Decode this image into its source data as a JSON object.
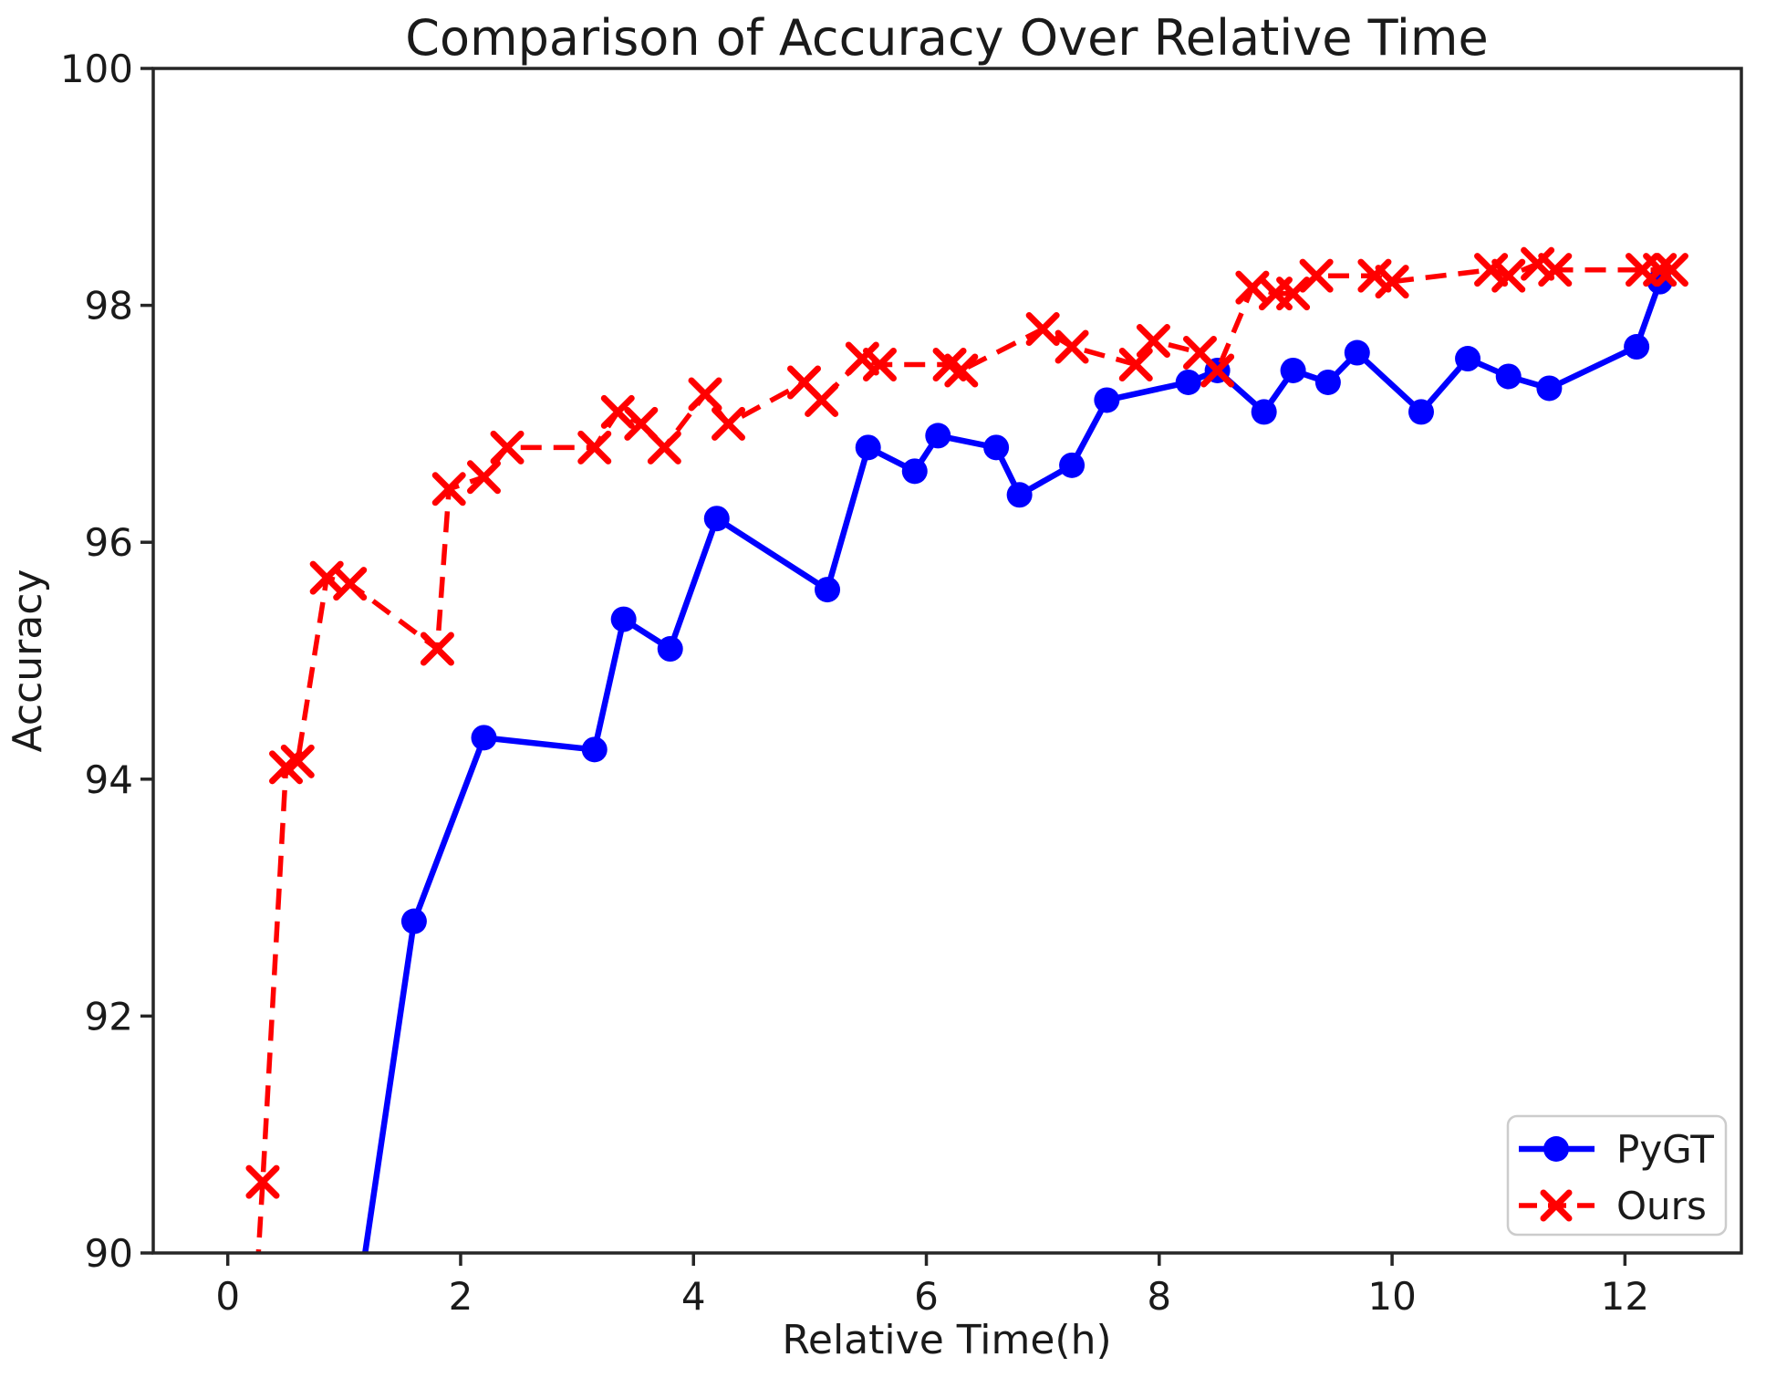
{
  "figure": {
    "background": "#ffffff",
    "text_color": "#1a1a1a",
    "spine_color": "#262626"
  },
  "chart_data": {
    "type": "line",
    "title": "Comparison of Accuracy Over Relative Time",
    "xlabel": "Relative Time(h)",
    "ylabel": "Accuracy",
    "xlim": [
      -0.64,
      13.0
    ],
    "ylim": [
      90,
      100
    ],
    "x_ticks": [
      0,
      2,
      4,
      6,
      8,
      10,
      12
    ],
    "y_ticks": [
      90,
      92,
      94,
      96,
      98,
      100
    ],
    "grid": false,
    "legend": {
      "position": "lower right"
    },
    "series": [
      {
        "name": "PyGT",
        "color": "#0000ff",
        "line_style": "solid",
        "marker": "circle",
        "x": [
          1.12,
          1.6,
          2.2,
          3.15,
          3.4,
          3.8,
          4.2,
          5.15,
          5.5,
          5.9,
          6.1,
          6.6,
          6.8,
          7.25,
          7.55,
          8.25,
          8.5,
          8.9,
          9.15,
          9.45,
          9.7,
          10.25,
          10.65,
          11.0,
          11.35,
          12.1,
          12.3
        ],
        "y": [
          89.6,
          92.8,
          94.35,
          94.25,
          95.35,
          95.1,
          96.2,
          95.6,
          96.8,
          96.6,
          96.9,
          96.8,
          96.4,
          96.65,
          97.2,
          97.35,
          97.45,
          97.1,
          97.45,
          97.35,
          97.6,
          97.1,
          97.55,
          97.4,
          97.3,
          97.65,
          98.2
        ]
      },
      {
        "name": "Ours",
        "color": "#ff0000",
        "line_style": "dashed",
        "marker": "x",
        "x": [
          0.22,
          0.3,
          0.5,
          0.6,
          0.85,
          1.05,
          1.8,
          1.9,
          2.2,
          2.4,
          3.15,
          3.35,
          3.55,
          3.75,
          4.1,
          4.3,
          4.95,
          5.1,
          5.45,
          5.6,
          6.2,
          6.3,
          7.0,
          7.25,
          7.8,
          7.95,
          8.35,
          8.5,
          8.8,
          9.0,
          9.15,
          9.35,
          9.85,
          10.0,
          10.85,
          11.0,
          11.25,
          11.4,
          12.15,
          12.3,
          12.4
        ],
        "y": [
          89.3,
          90.6,
          94.1,
          94.15,
          95.7,
          95.65,
          95.1,
          96.45,
          96.55,
          96.8,
          96.8,
          97.1,
          97.0,
          96.8,
          97.25,
          97.0,
          97.35,
          97.2,
          97.55,
          97.5,
          97.5,
          97.45,
          97.8,
          97.65,
          97.5,
          97.7,
          97.6,
          97.45,
          98.15,
          98.1,
          98.1,
          98.25,
          98.25,
          98.2,
          98.3,
          98.25,
          98.35,
          98.3,
          98.3,
          98.3,
          98.3
        ]
      }
    ]
  }
}
